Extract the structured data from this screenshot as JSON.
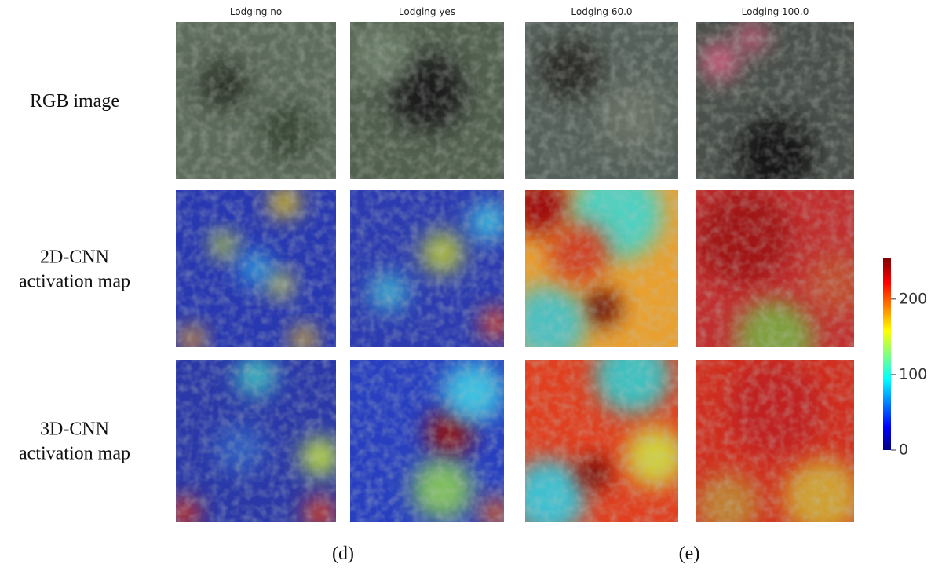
{
  "columns": [
    "Lodging no",
    "Lodging yes",
    "Lodging 60.0",
    "Lodging 100.0"
  ],
  "rows": [
    [
      "RGB image"
    ],
    [
      "2D-CNN",
      "activation map"
    ],
    [
      "3D-CNN",
      "activation map"
    ]
  ],
  "colorbar": {
    "lim": [
      0,
      255
    ],
    "ticks": [
      0,
      100,
      200
    ]
  },
  "captions": [
    "(d)",
    "(e)"
  ]
}
